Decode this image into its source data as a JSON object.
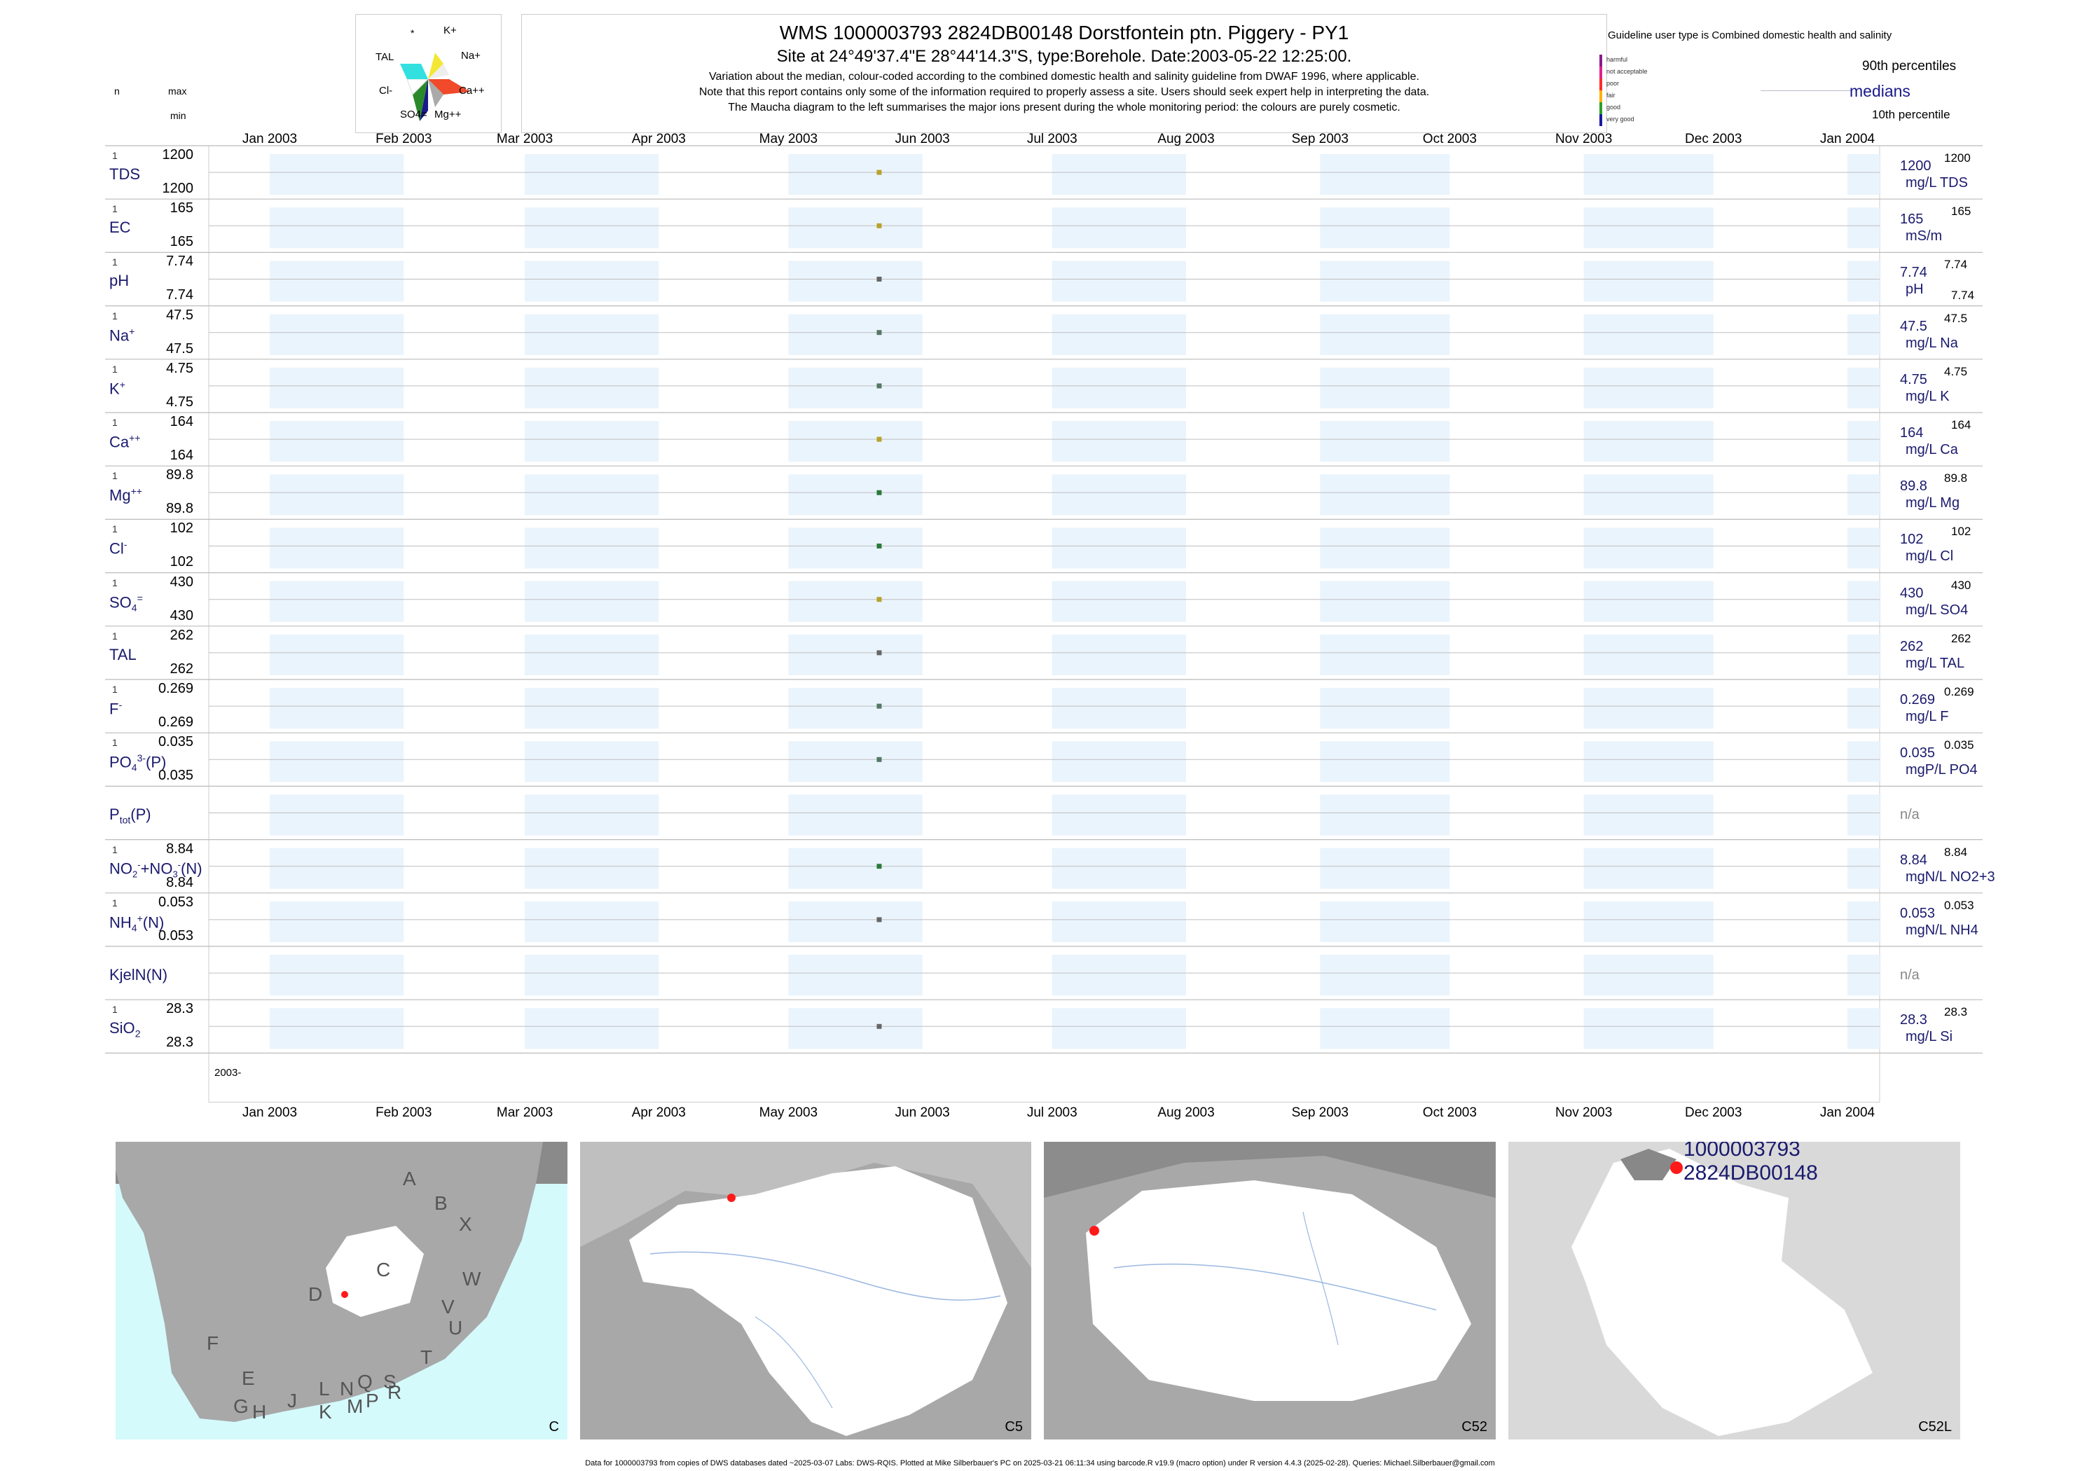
{
  "header": {
    "title": "WMS 1000003793 2824DB00148 Dorstfontein ptn. Piggery - PY1",
    "subtitle": "Site at 24°49'37.4\"E 28°44'14.3\"S, type:Borehole. Date:2003-05-22 12:25:00.",
    "notes": [
      "Variation about the median,  colour-coded according to the combined domestic health and salinity guideline from DWAF 1996, where applicable.",
      "Note that this report contains only some of the information required to properly assess a site. Users should seek expert help in interpreting the data.",
      "The Maucha diagram to the left summarises the major ions present during the whole monitoring period: the colours are purely cosmetic."
    ]
  },
  "left_header": {
    "n": "n",
    "max": "max",
    "min": "min"
  },
  "maucha": {
    "labels": [
      "*",
      "K+",
      "Na+",
      "Ca++",
      "Mg++",
      "SO4=",
      "Cl-",
      "TAL"
    ]
  },
  "guideline": {
    "title": "Guideline user type is Combined domestic health and salinity",
    "classes": [
      {
        "label": "harmful",
        "color": "#8b1a8b"
      },
      {
        "label": "not acceptable",
        "color": "#e0218a"
      },
      {
        "label": "poor",
        "color": "#ff2a2a"
      },
      {
        "label": "fair",
        "color": "#ffb000"
      },
      {
        "label": "good",
        "color": "#2aa02a"
      },
      {
        "label": "very good",
        "color": "#1a1aa0"
      }
    ],
    "p90": "90th percentiles",
    "median": "medians",
    "p10": "10th percentile"
  },
  "months": [
    "Jan 2003",
    "Feb 2003",
    "Mar 2003",
    "Apr 2003",
    "May 2003",
    "Jun 2003",
    "Jul 2003",
    "Aug 2003",
    "Sep 2003",
    "Oct 2003",
    "Nov 2003",
    "Dec 2003",
    "Jan 2004"
  ],
  "year_label": "2003-",
  "chart_data": {
    "type": "scatter",
    "sample_date": "2003-05-22",
    "x_range": [
      "2003-01-01",
      "2004-01-01"
    ],
    "rows": [
      {
        "name": "TDS",
        "sup": "",
        "sub": "",
        "n": "1",
        "max": "1200",
        "min": "1200",
        "median": 1200,
        "unit": "mg/L TDS",
        "rmax": "1200",
        "rmin": "",
        "color": "#b8a22a"
      },
      {
        "name": "EC",
        "sup": "",
        "sub": "",
        "n": "1",
        "max": "165",
        "min": "165",
        "median": 165,
        "unit": "mS/m",
        "rmax": "165",
        "rmin": "",
        "color": "#b8a22a"
      },
      {
        "name": "pH",
        "sup": "",
        "sub": "",
        "n": "1",
        "max": "7.74",
        "min": "7.74",
        "median": 7.74,
        "unit": "pH",
        "rmax": "7.74",
        "rmin": "7.74",
        "color": "#666666"
      },
      {
        "name": "Na",
        "sup": "+",
        "sub": "",
        "n": "1",
        "max": "47.5",
        "min": "47.5",
        "median": 47.5,
        "unit": "mg/L Na",
        "rmax": "47.5",
        "rmin": "",
        "color": "#557766"
      },
      {
        "name": "K",
        "sup": "+",
        "sub": "",
        "n": "1",
        "max": "4.75",
        "min": "4.75",
        "median": 4.75,
        "unit": "mg/L K",
        "rmax": "4.75",
        "rmin": "",
        "color": "#557766"
      },
      {
        "name": "Ca",
        "sup": "++",
        "sub": "",
        "n": "1",
        "max": "164",
        "min": "164",
        "median": 164,
        "unit": "mg/L Ca",
        "rmax": "164",
        "rmin": "",
        "color": "#b8a22a"
      },
      {
        "name": "Mg",
        "sup": "++",
        "sub": "",
        "n": "1",
        "max": "89.8",
        "min": "89.8",
        "median": 89.8,
        "unit": "mg/L Mg",
        "rmax": "89.8",
        "rmin": "",
        "color": "#2a7a3a"
      },
      {
        "name": "Cl",
        "sup": "-",
        "sub": "",
        "n": "1",
        "max": "102",
        "min": "102",
        "median": 102,
        "unit": "mg/L Cl",
        "rmax": "102",
        "rmin": "",
        "color": "#2a7a3a"
      },
      {
        "name": "SO",
        "sup": "=",
        "sub": "4",
        "n": "1",
        "max": "430",
        "min": "430",
        "median": 430,
        "unit": "mg/L SO4",
        "rmax": "430",
        "rmin": "",
        "color": "#b8a22a"
      },
      {
        "name": "TAL",
        "sup": "",
        "sub": "",
        "n": "1",
        "max": "262",
        "min": "262",
        "median": 262,
        "unit": "mg/L TAL",
        "rmax": "262",
        "rmin": "",
        "color": "#666666"
      },
      {
        "name": "F",
        "sup": "-",
        "sub": "",
        "n": "1",
        "max": "0.269",
        "min": "0.269",
        "median": 0.269,
        "unit": "mg/L F",
        "rmax": "0.269",
        "rmin": "",
        "color": "#557766"
      },
      {
        "name": "PO",
        "sup": "3-",
        "sub": "4",
        "suffix": "(P)",
        "n": "1",
        "max": "0.035",
        "min": "0.035",
        "median": 0.035,
        "unit": "mgP/L PO4",
        "rmax": "0.035",
        "rmin": "",
        "color": "#557766"
      },
      {
        "name": "P",
        "sup": "",
        "sub": "tot",
        "suffix": "(P)",
        "n": "",
        "max": "",
        "min": "",
        "median": null,
        "unit": "",
        "rmax": "",
        "rmin": "",
        "na": "n/a",
        "color": ""
      },
      {
        "name": "NO2+NO3(N)",
        "sup": "",
        "sub": "",
        "n": "1",
        "max": "8.84",
        "min": "8.84",
        "median": 8.84,
        "unit": "mgN/L NO2+3",
        "rmax": "8.84",
        "rmin": "",
        "color": "#2a7a3a"
      },
      {
        "name": "NH",
        "sup": "+",
        "sub": "4",
        "suffix": "(N)",
        "n": "1",
        "max": "0.053",
        "min": "0.053",
        "median": 0.053,
        "unit": "mgN/L NH4",
        "rmax": "0.053",
        "rmin": "",
        "color": "#666666"
      },
      {
        "name": "KjelN(N)",
        "sup": "",
        "sub": "",
        "n": "",
        "max": "",
        "min": "",
        "median": null,
        "unit": "",
        "rmax": "",
        "rmin": "",
        "na": "n/a",
        "color": ""
      },
      {
        "name": "SiO",
        "sup": "",
        "sub": "2",
        "n": "1",
        "max": "28.3",
        "min": "28.3",
        "median": 28.3,
        "unit": "mg/L Si",
        "rmax": "28.3",
        "rmin": "",
        "color": "#666666"
      }
    ]
  },
  "maps": [
    {
      "label": "C",
      "regions": [
        "A",
        "B",
        "X",
        "C",
        "D",
        "W",
        "V",
        "U",
        "T",
        "F",
        "E",
        "G",
        "H",
        "J",
        "K",
        "L",
        "M",
        "N",
        "P",
        "Q",
        "R",
        "S"
      ]
    },
    {
      "label": "C5"
    },
    {
      "label": "C52"
    },
    {
      "label": "C52L",
      "site_id": "1000003793",
      "site_code": "2824DB00148"
    }
  ],
  "footer": "Data for 1000003793 from copies of DWS databases dated ~2025-03-07 Labs: DWS-RQIS. Plotted at Mike Silberbauer's PC on 2025-03-21 06:11:34 using barcode.R v19.9 (macro option) under R version 4.4.3 (2025-02-28). Queries: Michael.Silberbauer@gmail.com"
}
